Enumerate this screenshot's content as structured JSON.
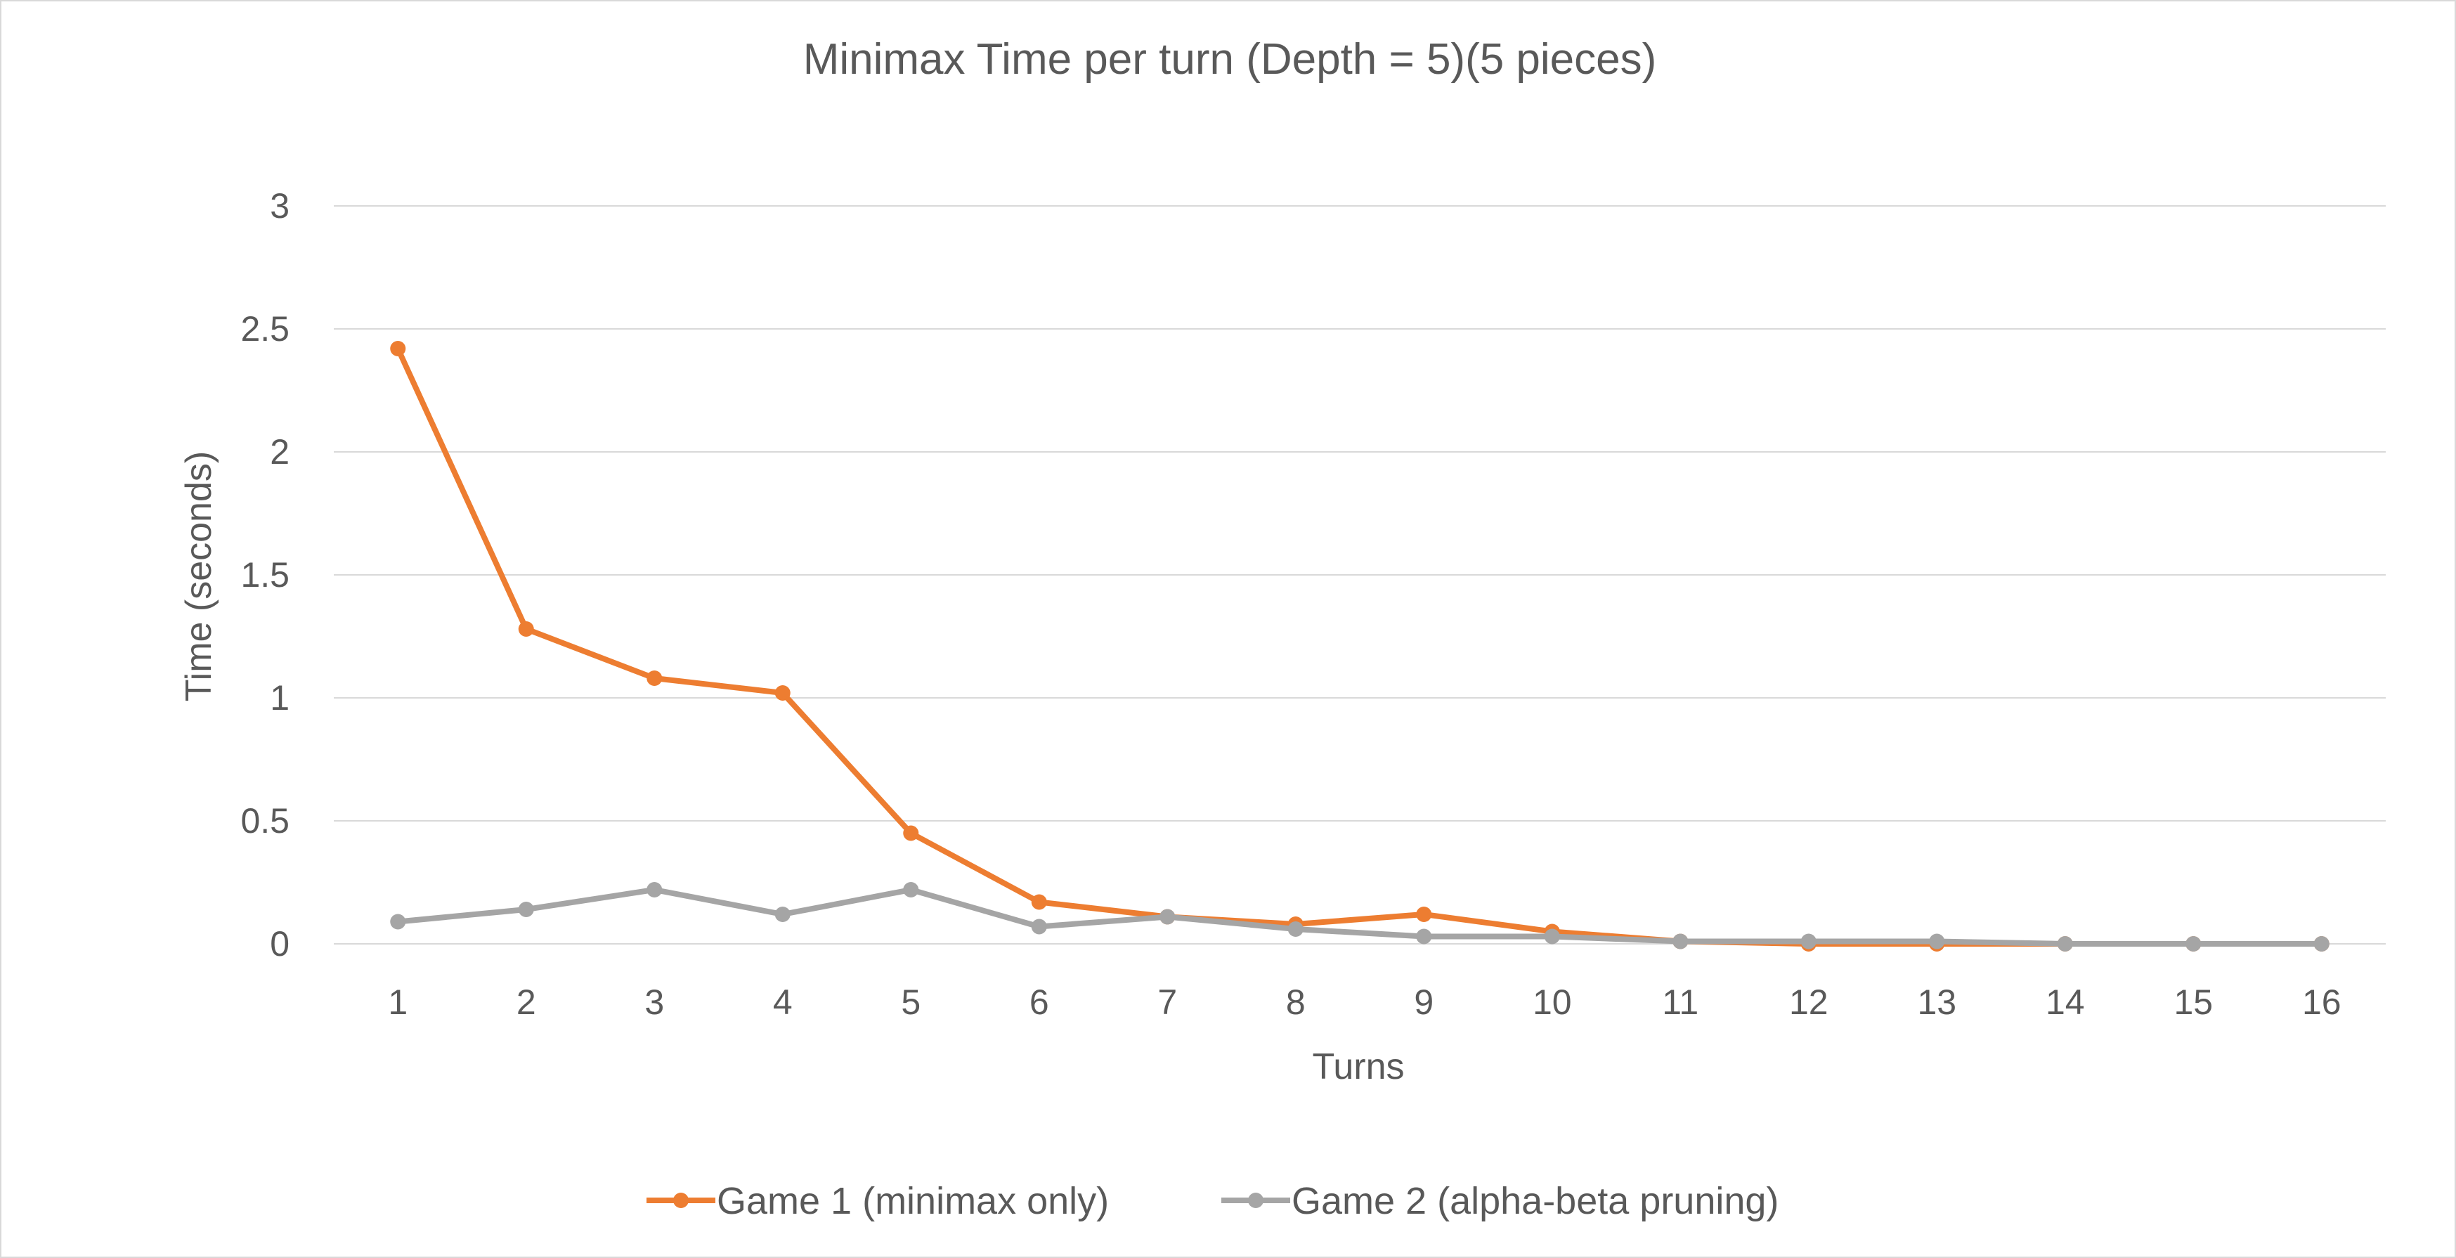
{
  "chart_data": {
    "type": "line",
    "title": "Minimax Time per turn (Depth = 5)(5 pieces)",
    "xlabel": "Turns",
    "ylabel": "Time (seconds)",
    "categories": [
      "1",
      "2",
      "3",
      "4",
      "5",
      "6",
      "7",
      "8",
      "9",
      "10",
      "11",
      "12",
      "13",
      "14",
      "15",
      "16"
    ],
    "y_ticks": [
      "0",
      "0.5",
      "1",
      "1.5",
      "2",
      "2.5",
      "3"
    ],
    "ylim": [
      0,
      3
    ],
    "grid": true,
    "legend_position": "bottom",
    "series": [
      {
        "name": "Game 1 (minimax only)",
        "color": "#ED7D31",
        "values": [
          2.42,
          1.28,
          1.08,
          1.02,
          0.45,
          0.17,
          0.11,
          0.08,
          0.12,
          0.05,
          0.01,
          0.0,
          0.0,
          0.0,
          0.0,
          0.0
        ]
      },
      {
        "name": "Game 2 (alpha-beta pruning)",
        "color": "#A5A5A5",
        "values": [
          0.09,
          0.14,
          0.22,
          0.12,
          0.22,
          0.07,
          0.11,
          0.06,
          0.03,
          0.03,
          0.01,
          0.01,
          0.01,
          0.0,
          0.0,
          0.0
        ]
      }
    ]
  }
}
